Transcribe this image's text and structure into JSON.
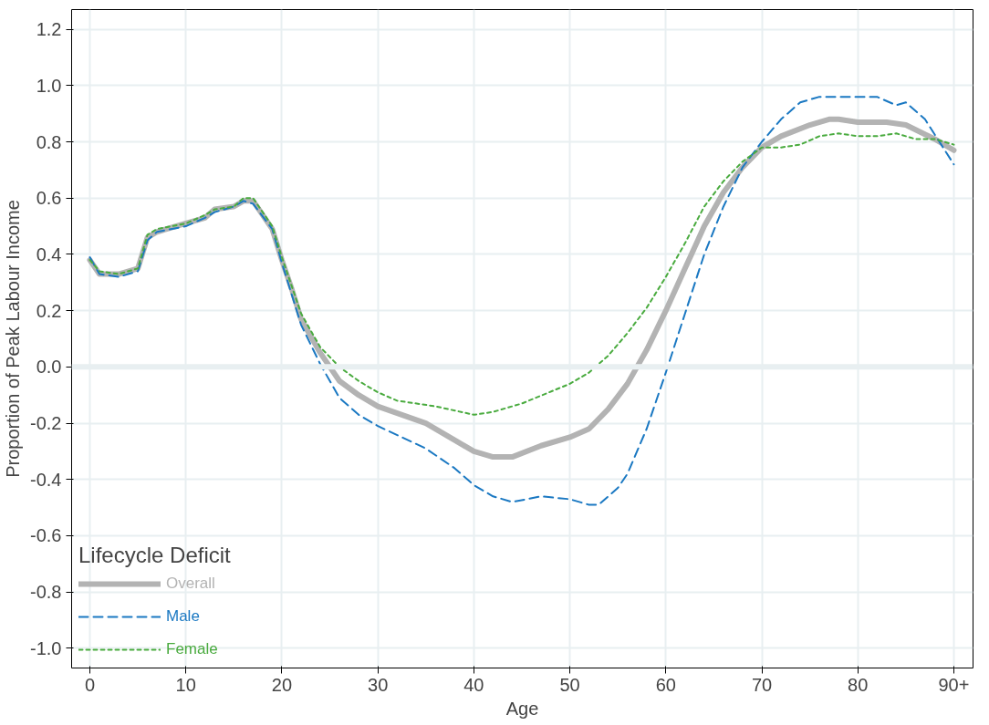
{
  "chart_data": {
    "type": "line",
    "xlabel": "Age",
    "ylabel": "Proportion of Peak Labour Income",
    "legend_title": "Lifecycle Deficit",
    "xlim": [
      -1.9,
      92
    ],
    "xticks": [
      0,
      10,
      20,
      30,
      40,
      50,
      60,
      70,
      80,
      {
        "value": 90,
        "label": "90+"
      }
    ],
    "ylim": [
      -1.07,
      1.27
    ],
    "yticks": [
      {
        "value": -1.0,
        "label": "-1.0"
      },
      {
        "value": -0.8,
        "label": "-0.8"
      },
      {
        "value": -0.6,
        "label": "-0.6"
      },
      {
        "value": -0.4,
        "label": "-0.4"
      },
      {
        "value": -0.2,
        "label": "-0.2"
      },
      {
        "value": 0.0,
        "label": "0.0"
      },
      {
        "value": 0.2,
        "label": "0.2"
      },
      {
        "value": 0.4,
        "label": "0.4"
      },
      {
        "value": 0.6,
        "label": "0.6"
      },
      {
        "value": 0.8,
        "label": "0.8"
      },
      {
        "value": 1.0,
        "label": "1.0"
      },
      {
        "value": 1.2,
        "label": "1.2"
      }
    ],
    "grid": true,
    "legend": "bottom left",
    "ref_lines": [
      {
        "axis": "y",
        "value": 0,
        "label": null,
        "color": "#e8eff1"
      }
    ],
    "series": [
      {
        "name": "Overall",
        "color": "#b3b3b3",
        "line_style": "solid",
        "x": [
          0,
          1,
          3,
          5,
          6,
          7,
          10,
          12,
          13,
          15,
          16,
          17,
          19,
          20,
          21,
          22,
          24,
          26,
          28,
          30,
          35,
          38,
          40,
          42,
          44,
          47,
          50,
          52,
          54,
          56,
          58,
          60,
          62,
          64,
          66,
          68,
          70,
          72,
          75,
          77,
          78,
          80,
          83,
          85,
          88,
          90
        ],
        "values": [
          0.38,
          0.33,
          0.33,
          0.35,
          0.46,
          0.48,
          0.51,
          0.53,
          0.56,
          0.57,
          0.59,
          0.59,
          0.49,
          0.38,
          0.28,
          0.17,
          0.05,
          -0.05,
          -0.1,
          -0.14,
          -0.2,
          -0.26,
          -0.3,
          -0.32,
          -0.32,
          -0.28,
          -0.25,
          -0.22,
          -0.15,
          -0.06,
          0.06,
          0.2,
          0.35,
          0.5,
          0.62,
          0.71,
          0.78,
          0.82,
          0.86,
          0.88,
          0.88,
          0.87,
          0.87,
          0.86,
          0.81,
          0.77
        ]
      },
      {
        "name": "Male",
        "color": "#1a78c2",
        "line_style": "dashed",
        "x": [
          0,
          1,
          3,
          5,
          6,
          7,
          10,
          12,
          13,
          15,
          16,
          17,
          19,
          20,
          22,
          24,
          26,
          28,
          30,
          35,
          38,
          40,
          42,
          44,
          47,
          50,
          52,
          53,
          55,
          56,
          58,
          60,
          62,
          64,
          66,
          68,
          70,
          72,
          74,
          76,
          78,
          80,
          82,
          84,
          85,
          87,
          90
        ],
        "values": [
          0.39,
          0.33,
          0.32,
          0.34,
          0.45,
          0.48,
          0.5,
          0.53,
          0.55,
          0.57,
          0.59,
          0.58,
          0.49,
          0.37,
          0.15,
          0.01,
          -0.11,
          -0.17,
          -0.21,
          -0.29,
          -0.36,
          -0.42,
          -0.46,
          -0.48,
          -0.46,
          -0.47,
          -0.49,
          -0.49,
          -0.43,
          -0.38,
          -0.22,
          -0.02,
          0.19,
          0.4,
          0.57,
          0.71,
          0.8,
          0.88,
          0.94,
          0.96,
          0.96,
          0.96,
          0.96,
          0.93,
          0.94,
          0.88,
          0.72
        ]
      },
      {
        "name": "Female",
        "color": "#4aab3f",
        "line_style": "dotted",
        "x": [
          0,
          1,
          3,
          5,
          6,
          7,
          10,
          12,
          13,
          15,
          16,
          17,
          19,
          20,
          22,
          24,
          26,
          28,
          30,
          32,
          36,
          40,
          42,
          45,
          50,
          52,
          54,
          56,
          58,
          60,
          62,
          64,
          66,
          68,
          70,
          72,
          74,
          76,
          78,
          80,
          82,
          84,
          86,
          88,
          90
        ],
        "values": [
          0.38,
          0.34,
          0.33,
          0.35,
          0.47,
          0.49,
          0.51,
          0.54,
          0.56,
          0.57,
          0.6,
          0.6,
          0.5,
          0.39,
          0.19,
          0.07,
          0.0,
          -0.05,
          -0.09,
          -0.12,
          -0.14,
          -0.17,
          -0.16,
          -0.13,
          -0.06,
          -0.02,
          0.04,
          0.12,
          0.21,
          0.32,
          0.44,
          0.57,
          0.66,
          0.73,
          0.78,
          0.78,
          0.79,
          0.82,
          0.83,
          0.82,
          0.82,
          0.83,
          0.81,
          0.81,
          0.79
        ]
      }
    ]
  }
}
